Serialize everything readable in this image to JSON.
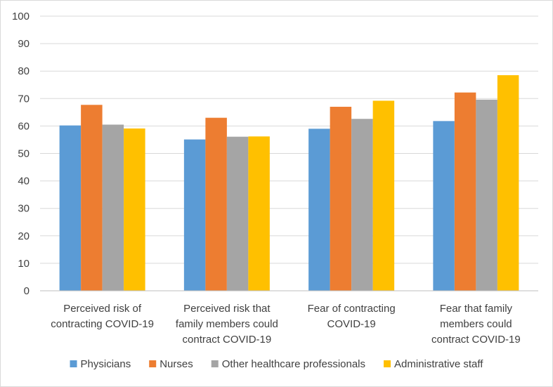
{
  "chart_data": {
    "type": "bar",
    "title": "",
    "xlabel": "",
    "ylabel": "",
    "ylim": [
      0,
      100
    ],
    "yticks": [
      0,
      10,
      20,
      30,
      40,
      50,
      60,
      70,
      80,
      90,
      100
    ],
    "grid": true,
    "legend_position": "bottom",
    "categories": [
      [
        "Perceived risk of",
        "contracting COVID-19"
      ],
      [
        "Perceived risk that",
        "family members could",
        "contract COVID-19"
      ],
      [
        "Fear of contracting",
        "COVID-19"
      ],
      [
        "Fear that family",
        "members could",
        "contract COVID-19"
      ]
    ],
    "series": [
      {
        "name": "Physicians",
        "color": "#5b9bd5",
        "values": [
          60.2,
          55.1,
          59.0,
          61.8
        ]
      },
      {
        "name": "Nurses",
        "color": "#ed7d31",
        "values": [
          67.7,
          63.0,
          67.0,
          72.2
        ]
      },
      {
        "name": "Other healthcare professionals",
        "color": "#a5a5a5",
        "values": [
          60.5,
          56.1,
          62.6,
          69.6
        ]
      },
      {
        "name": "Administrative staff",
        "color": "#ffc000",
        "values": [
          59.1,
          56.2,
          69.2,
          78.5
        ]
      }
    ]
  }
}
